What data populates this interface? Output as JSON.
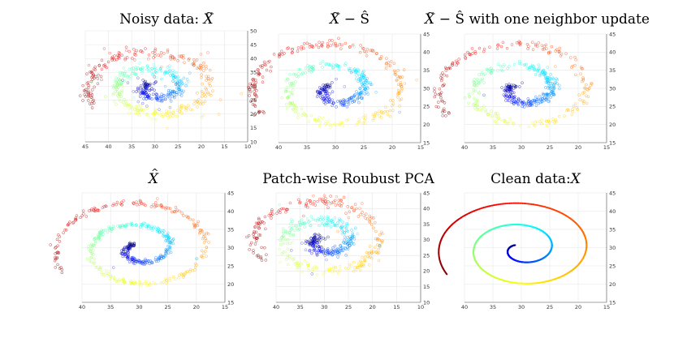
{
  "chart_data": [
    {
      "type": "scatter",
      "title": "Noisy data: X̃",
      "title_parts": {
        "lead": "Noisy data: ",
        "sym": "X",
        "accent": "~",
        "tail": ""
      },
      "xlim": [
        45,
        10
      ],
      "ylim": [
        10,
        50
      ],
      "x_ticks": [
        "45",
        "40",
        "35",
        "30",
        "25",
        "20",
        "15",
        "10"
      ],
      "y_ticks": [
        "10",
        "15",
        "20",
        "25",
        "30",
        "35",
        "40",
        "45",
        "50"
      ],
      "grid": true,
      "points_style": "faint circles colored along spiral (blue center to red end)",
      "spiral": {
        "center": [
          30,
          29.7
        ],
        "end": [
          28.5,
          43.5
        ],
        "turns": 2.2
      },
      "noise_level": "high",
      "outliers": 60
    },
    {
      "type": "scatter",
      "title": "X̃ − Ŝ",
      "title_parts": {
        "lead": "",
        "sym": "X",
        "accent": "~",
        "tail": " − Ŝ"
      },
      "xlim": [
        40,
        15
      ],
      "ylim": [
        15,
        45
      ],
      "x_ticks": [
        "40",
        "35",
        "30",
        "25",
        "20",
        "15"
      ],
      "y_ticks": [
        "15",
        "20",
        "25",
        "30",
        "35",
        "40",
        "45"
      ],
      "grid": true,
      "spiral": {
        "center": [
          30,
          29.7
        ],
        "end": [
          28.5,
          43.5
        ],
        "turns": 2.2
      },
      "noise_level": "medium",
      "outliers": 8
    },
    {
      "type": "scatter",
      "title": "X̃ − Ŝ with one neighbor update",
      "title_parts": {
        "lead": "",
        "sym": "X",
        "accent": "~",
        "tail": " − Ŝ with one neighbor update"
      },
      "xlim": [
        40,
        15
      ],
      "ylim": [
        15,
        45
      ],
      "x_ticks": [
        "40",
        "35",
        "30",
        "25",
        "20",
        "15"
      ],
      "y_ticks": [
        "15",
        "20",
        "25",
        "30",
        "35",
        "40",
        "45"
      ],
      "grid": true,
      "spiral": {
        "center": [
          30,
          29.7
        ],
        "end": [
          28.5,
          43.5
        ],
        "turns": 2.2
      },
      "noise_level": "medium",
      "outliers": 6
    },
    {
      "type": "scatter",
      "title": "X̂",
      "title_parts": {
        "lead": "",
        "sym": "X",
        "accent": "^",
        "tail": ""
      },
      "xlim": [
        40,
        15
      ],
      "ylim": [
        15,
        45
      ],
      "x_ticks": [
        "40",
        "35",
        "30",
        "25",
        "20",
        "15"
      ],
      "y_ticks": [
        "15",
        "20",
        "25",
        "30",
        "35",
        "40",
        "45"
      ],
      "grid": true,
      "spiral": {
        "center": [
          30,
          29.7
        ],
        "end": [
          28.5,
          43.5
        ],
        "turns": 2.2
      },
      "noise_level": "low",
      "outliers": 3
    },
    {
      "type": "scatter",
      "title": "Patch-wise Roubust PCA",
      "title_parts": {
        "lead": "Patch-wise Roubust PCA",
        "sym": "",
        "accent": "",
        "tail": ""
      },
      "xlim": [
        40,
        10
      ],
      "ylim": [
        10,
        45
      ],
      "x_ticks": [
        "40",
        "35",
        "30",
        "25",
        "20",
        "15",
        "10"
      ],
      "y_ticks": [
        "10",
        "15",
        "20",
        "25",
        "30",
        "35",
        "40",
        "45"
      ],
      "grid": true,
      "spiral": {
        "center": [
          30,
          29.7
        ],
        "end": [
          28.5,
          43.5
        ],
        "turns": 2.2
      },
      "noise_level": "medium-high",
      "outliers": 35
    },
    {
      "type": "scatter",
      "title": "Clean data:X",
      "title_parts": {
        "lead": "Clean data:",
        "sym": "X",
        "accent": "",
        "tail": ""
      },
      "xlim": [
        40,
        15
      ],
      "ylim": [
        15,
        45
      ],
      "x_ticks": [
        "40",
        "35",
        "30",
        "25",
        "20",
        "15"
      ],
      "y_ticks": [
        "15",
        "20",
        "25",
        "30",
        "35",
        "40",
        "45"
      ],
      "grid": true,
      "spiral": {
        "center": [
          30,
          29.7
        ],
        "end": [
          28.5,
          43.5
        ],
        "turns": 2.2
      },
      "noise_level": "none",
      "outliers": 0
    }
  ]
}
